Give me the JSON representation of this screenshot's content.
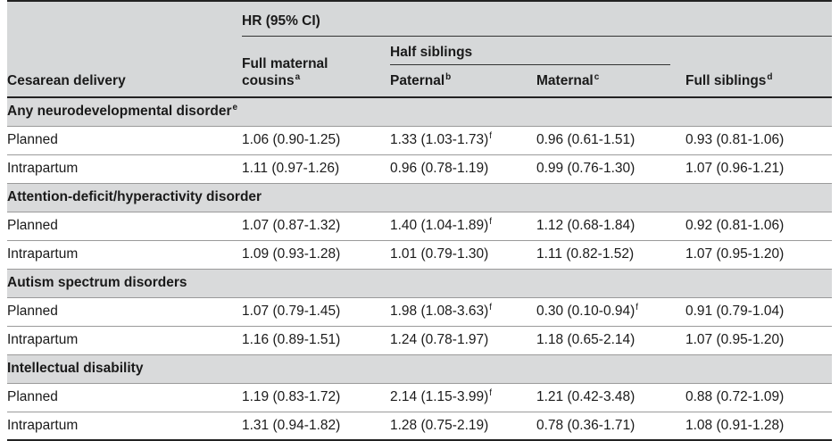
{
  "table": {
    "header": {
      "group": "HR (95% CI)",
      "subgroup": "Half siblings",
      "row_label": "Cesarean delivery",
      "cousins_line1": "Full maternal",
      "cousins_line2": "cousins",
      "cousins_sup": "a",
      "paternal": "Paternal",
      "paternal_sup": "b",
      "maternal": "Maternal",
      "maternal_sup": "c",
      "siblings": "Full siblings",
      "siblings_sup": "d"
    },
    "sections": [
      {
        "title": "Any neurodevelopmental disorder",
        "title_sup": "e",
        "rows": [
          {
            "label": "Planned",
            "cousins": "1.06 (0.90-1.25)",
            "cousins_sup": "",
            "paternal": "1.33 (1.03-1.73)",
            "paternal_sup": "f",
            "maternal": "0.96 (0.61-1.51)",
            "maternal_sup": "",
            "siblings": "0.93 (0.81-1.06)",
            "siblings_sup": ""
          },
          {
            "label": "Intrapartum",
            "cousins": "1.11 (0.97-1.26)",
            "cousins_sup": "",
            "paternal": "0.96 (0.78-1.19)",
            "paternal_sup": "",
            "maternal": "0.99 (0.76-1.30)",
            "maternal_sup": "",
            "siblings": "1.07 (0.96-1.21)",
            "siblings_sup": ""
          }
        ]
      },
      {
        "title": "Attention-deficit/hyperactivity disorder",
        "title_sup": "",
        "rows": [
          {
            "label": "Planned",
            "cousins": "1.07 (0.87-1.32)",
            "cousins_sup": "",
            "paternal": "1.40 (1.04-1.89)",
            "paternal_sup": "f",
            "maternal": "1.12 (0.68-1.84)",
            "maternal_sup": "",
            "siblings": "0.92 (0.81-1.06)",
            "siblings_sup": ""
          },
          {
            "label": "Intrapartum",
            "cousins": "1.09 (0.93-1.28)",
            "cousins_sup": "",
            "paternal": "1.01 (0.79-1.30)",
            "paternal_sup": "",
            "maternal": "1.11 (0.82-1.52)",
            "maternal_sup": "",
            "siblings": "1.07 (0.95-1.20)",
            "siblings_sup": ""
          }
        ]
      },
      {
        "title": "Autism spectrum disorders",
        "title_sup": "",
        "rows": [
          {
            "label": "Planned",
            "cousins": "1.07 (0.79-1.45)",
            "cousins_sup": "",
            "paternal": "1.98 (1.08-3.63)",
            "paternal_sup": "f",
            "maternal": "0.30 (0.10-0.94)",
            "maternal_sup": "f",
            "siblings": "0.91 (0.79-1.04)",
            "siblings_sup": ""
          },
          {
            "label": "Intrapartum",
            "cousins": "1.16 (0.89-1.51)",
            "cousins_sup": "",
            "paternal": "1.24 (0.78-1.97)",
            "paternal_sup": "",
            "maternal": "1.18 (0.65-2.14)",
            "maternal_sup": "",
            "siblings": "1.07 (0.95-1.20)",
            "siblings_sup": ""
          }
        ]
      },
      {
        "title": "Intellectual disability",
        "title_sup": "",
        "rows": [
          {
            "label": "Planned",
            "cousins": "1.19 (0.83-1.72)",
            "cousins_sup": "",
            "paternal": "2.14 (1.15-3.99)",
            "paternal_sup": "f",
            "maternal": "1.21 (0.42-3.48)",
            "maternal_sup": "",
            "siblings": "0.88 (0.72-1.09)",
            "siblings_sup": ""
          },
          {
            "label": "Intrapartum",
            "cousins": "1.31 (0.94-1.82)",
            "cousins_sup": "",
            "paternal": "1.28 (0.75-2.19)",
            "paternal_sup": "",
            "maternal": "0.78 (0.36-1.71)",
            "maternal_sup": "",
            "siblings": "1.08 (0.91-1.28)",
            "siblings_sup": ""
          }
        ]
      }
    ]
  }
}
